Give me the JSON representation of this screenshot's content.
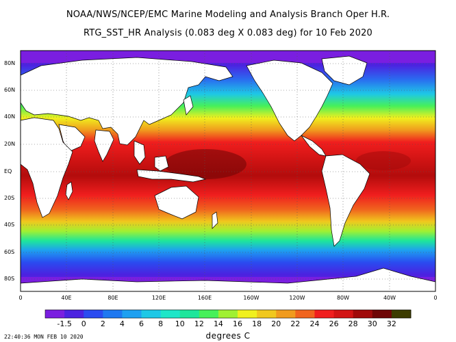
{
  "title_line1": "NOAA/NWS/NCEP/EMC Marine Modeling and Analysis Branch Oper H.R.",
  "title_line2": "RTG_SST_HR Analysis (0.083 deg X 0.083 deg) for 10 Feb 2020",
  "latitude_labels": [
    "80N",
    "60N",
    "40N",
    "20N",
    "EQ",
    "20S",
    "40S",
    "60S",
    "80S"
  ],
  "longitude_labels": [
    "0",
    "40E",
    "80E",
    "120E",
    "160E",
    "160W",
    "120W",
    "80W",
    "40W",
    "0"
  ],
  "colorbar": {
    "labels": [
      "-1.5",
      "0",
      "2",
      "4",
      "6",
      "8",
      "10",
      "12",
      "14",
      "16",
      "18",
      "20",
      "22",
      "24",
      "26",
      "28",
      "30",
      "32"
    ],
    "colors": [
      "#7a1ee0",
      "#4b22e0",
      "#2a4bf0",
      "#1e78f0",
      "#1ea0f0",
      "#1ec8e6",
      "#1ee6c8",
      "#1ee69b",
      "#46f05a",
      "#a0f032",
      "#f0f01e",
      "#f0c81e",
      "#f09b1e",
      "#f0641e",
      "#f01e1e",
      "#d21414",
      "#a00a0a",
      "#6e0505",
      "#3c3c00"
    ]
  },
  "units_label": "degrees C",
  "timestamp": "22:40:36  MON FEB 10 2020",
  "colors": {
    "land": "#ffffff",
    "ice": "#7a1ee0",
    "grid": "#555555"
  }
}
